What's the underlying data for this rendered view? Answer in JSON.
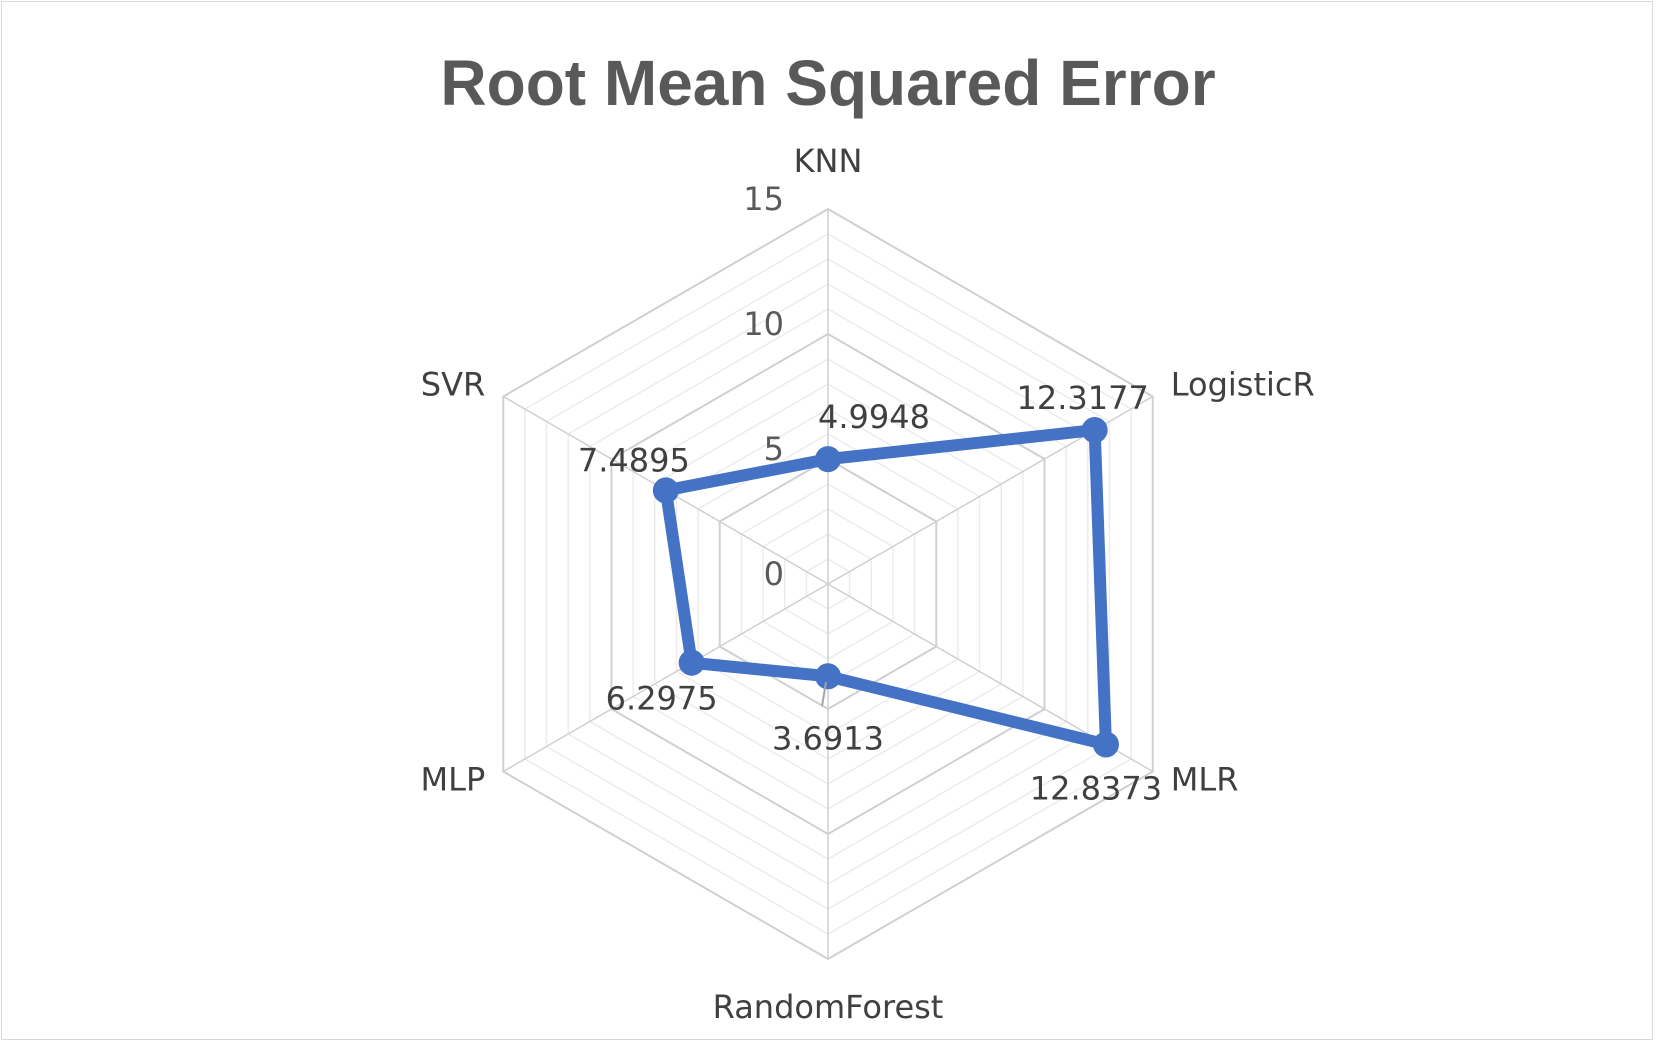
{
  "chart_data": {
    "type": "radar",
    "title": "Root Mean Squared Error",
    "categories": [
      "KNN",
      "LogisticR",
      "MLR",
      "RandomForest",
      "MLP",
      "SVR"
    ],
    "series": [
      {
        "values": [
          4.9948,
          12.3177,
          12.8373,
          3.6913,
          6.2975,
          7.4895
        ]
      }
    ],
    "data_labels": [
      "4.9948",
      "12.3177",
      "12.8373",
      "3.6913",
      "6.2975",
      "7.4895"
    ],
    "r_range": [
      0,
      15
    ],
    "r_ticks": [
      0,
      5,
      10,
      15
    ],
    "tick_labels": [
      "0",
      "5",
      "10",
      "15"
    ],
    "minor_grid_step": 1,
    "grid": true,
    "legend": "none",
    "colors": {
      "series": "#4472C4",
      "major_grid": "#d0d0d0",
      "minor_grid": "#ececec",
      "title": "#595959",
      "text": "#404040"
    }
  }
}
